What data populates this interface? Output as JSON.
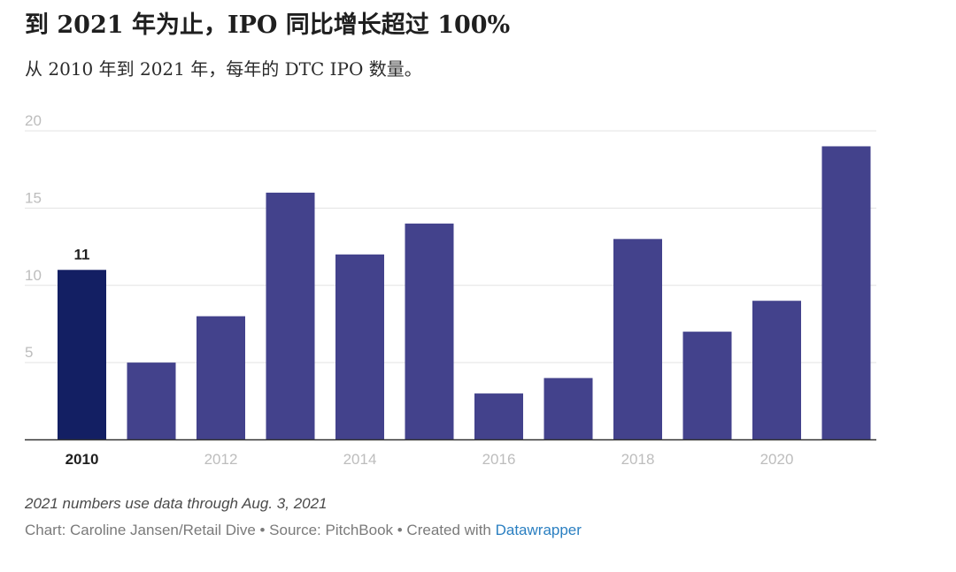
{
  "header": {
    "title": "到 2021 年为止，IPO 同比增长超过 100%",
    "subtitle": "从 2010 年到 2021 年，每年的 DTC IPO 数量。"
  },
  "footer": {
    "note": "2021 numbers use data through Aug. 3, 2021",
    "credits_prefix": "Chart: Caroline Jansen/Retail Dive • Source: PitchBook • Created with ",
    "credits_link": "Datawrapper"
  },
  "colors": {
    "bar": "#43428c",
    "bar_highlight": "#131f63",
    "grid": "#e3e3e3",
    "baseline": "#333333",
    "tick_label": "#bdbdbd",
    "axis_tick_label": "#bdbdbd",
    "highlight_label": "#1f1f1f",
    "link": "#2a7fc1"
  },
  "chart_data": {
    "type": "bar",
    "categories": [
      "2010",
      "2011",
      "2012",
      "2013",
      "2014",
      "2015",
      "2016",
      "2017",
      "2018",
      "2019",
      "2020",
      "2021"
    ],
    "values": [
      11,
      5,
      8,
      16,
      12,
      14,
      3,
      4,
      13,
      7,
      9,
      19
    ],
    "x_tick_labels": [
      "2010",
      "2012",
      "2014",
      "2016",
      "2018",
      "2020"
    ],
    "y_ticks": [
      5,
      10,
      15,
      20
    ],
    "ylim": [
      0,
      20
    ],
    "highlight": {
      "category": "2010",
      "label": "11"
    },
    "grid": true
  }
}
